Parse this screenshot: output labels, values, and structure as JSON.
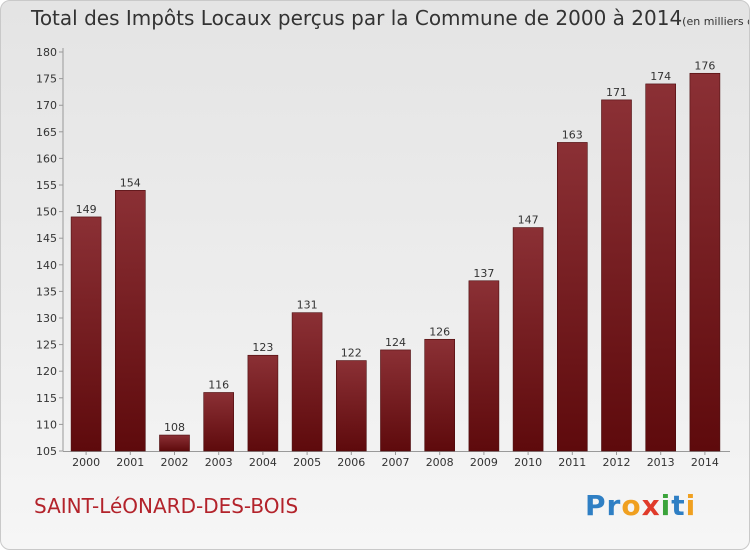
{
  "title": "Total des Impôts Locaux perçus par la Commune de 2000 à 2014",
  "title_unit": "(en milliers d'€)",
  "commune": "SAINT-LéONARD-DES-BOIS",
  "logo": {
    "text": "Proxiti",
    "letters": [
      {
        "ch": "P",
        "color": "#2f7fc4"
      },
      {
        "ch": "r",
        "color": "#2f7fc4"
      },
      {
        "ch": "o",
        "color": "#f0a020"
      },
      {
        "ch": "x",
        "color": "#e03a2a"
      },
      {
        "ch": "i",
        "color": "#3aa33a"
      },
      {
        "ch": "t",
        "color": "#2f7fc4"
      },
      {
        "ch": "i",
        "color": "#f0a020"
      }
    ]
  },
  "colors": {
    "bar_light": "#8b3035",
    "bar_dark": "#5e0a0c",
    "axis": "#999999",
    "text": "#333333",
    "commune": "#b3232b"
  },
  "chart_data": {
    "type": "bar",
    "categories": [
      "2000",
      "2001",
      "2002",
      "2003",
      "2004",
      "2005",
      "2006",
      "2007",
      "2008",
      "2009",
      "2010",
      "2011",
      "2012",
      "2013",
      "2014"
    ],
    "values": [
      149,
      154,
      108,
      116,
      123,
      131,
      122,
      124,
      126,
      137,
      147,
      163,
      171,
      174,
      176
    ],
    "ylim": [
      105,
      180
    ],
    "yticks": [
      105,
      110,
      115,
      120,
      125,
      130,
      135,
      140,
      145,
      150,
      155,
      160,
      165,
      170,
      175,
      180
    ],
    "grid": false,
    "legend": "none"
  }
}
